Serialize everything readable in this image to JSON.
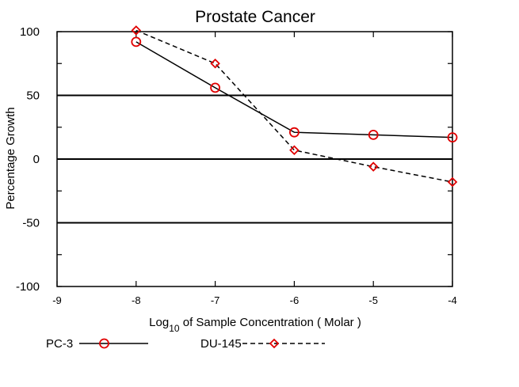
{
  "chart_data": {
    "type": "line",
    "title": "Prostate Cancer",
    "xlabel": {
      "prefix": "Log",
      "subscript": "10",
      "suffix": " of Sample Concentration ( Molar )"
    },
    "ylabel": "Percentage Growth",
    "xlim": [
      -9,
      -4
    ],
    "ylim": [
      -100,
      100
    ],
    "x_ticks": [
      "-9",
      "-8",
      "-7",
      "-6",
      "-5",
      "-4"
    ],
    "y_ticks": [
      "100",
      "50",
      "0",
      "-50",
      "-100"
    ],
    "reference_lines": [
      50,
      0,
      -50
    ],
    "grid": false,
    "legend_position": "bottom-left",
    "series": [
      {
        "name": "PC-3",
        "marker": "circle",
        "line_style": "solid",
        "color": "#000000",
        "marker_color": "#e00000",
        "x": [
          -8,
          -7,
          -6,
          -5,
          -4
        ],
        "y": [
          92,
          56,
          21,
          19,
          17
        ]
      },
      {
        "name": "DU-145",
        "marker": "diamond",
        "line_style": "dashed",
        "color": "#000000",
        "marker_color": "#e00000",
        "x": [
          -8,
          -7,
          -6,
          -5,
          -4
        ],
        "y": [
          101,
          75,
          7,
          -6,
          -18
        ]
      }
    ]
  }
}
